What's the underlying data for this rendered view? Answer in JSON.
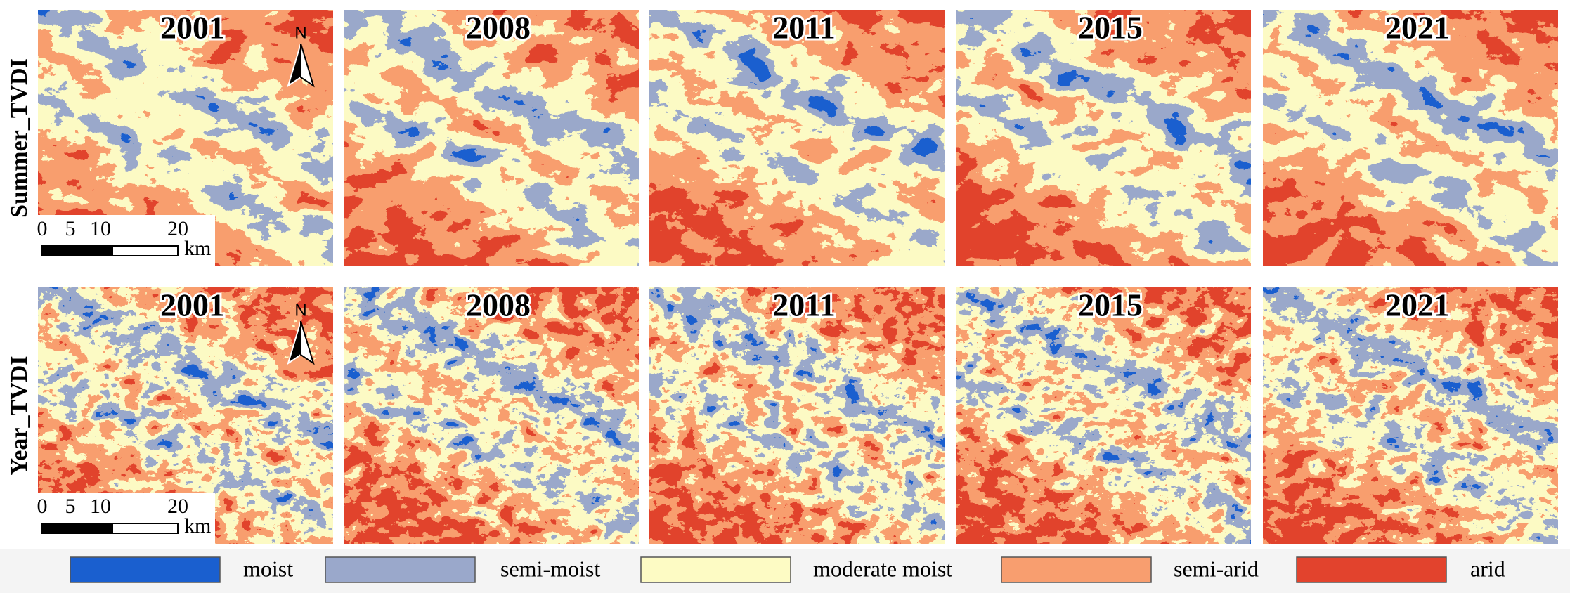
{
  "rows": [
    {
      "label": "Summer_TVDI",
      "panels": [
        "2001",
        "2008",
        "2011",
        "2015",
        "2021"
      ]
    },
    {
      "label": "Year_TVDI",
      "panels": [
        "2001",
        "2008",
        "2011",
        "2015",
        "2021"
      ]
    }
  ],
  "north_label": "N",
  "scale_bar": {
    "ticks": [
      "0",
      "5",
      "10",
      "20"
    ],
    "unit": "km"
  },
  "legend": [
    {
      "label": "moist",
      "color": "#1a5fcf"
    },
    {
      "label": "semi-moist",
      "color": "#9aa8cb"
    },
    {
      "label": "moderate moist",
      "color": "#fdfbc4"
    },
    {
      "label": "semi-arid",
      "color": "#f89e6f"
    },
    {
      "label": "arid",
      "color": "#e2432d"
    }
  ]
}
